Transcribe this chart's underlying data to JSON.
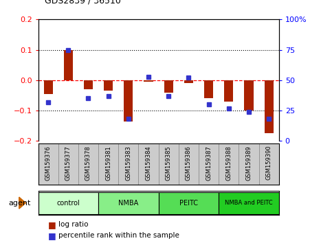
{
  "title": "GDS2839 / 36510",
  "samples": [
    "GSM159376",
    "GSM159377",
    "GSM159378",
    "GSM159381",
    "GSM159383",
    "GSM159384",
    "GSM159385",
    "GSM159386",
    "GSM159387",
    "GSM159388",
    "GSM159389",
    "GSM159390"
  ],
  "log_ratio": [
    -0.045,
    0.1,
    -0.03,
    -0.035,
    -0.135,
    -0.005,
    -0.04,
    -0.01,
    -0.06,
    -0.07,
    -0.1,
    -0.175
  ],
  "percentile_rank": [
    32,
    75,
    35,
    37,
    18,
    53,
    37,
    52,
    30,
    27,
    24,
    18
  ],
  "groups": [
    {
      "label": "control",
      "start": 0,
      "end": 3,
      "color": "#ccffcc"
    },
    {
      "label": "NMBA",
      "start": 3,
      "end": 6,
      "color": "#88ee88"
    },
    {
      "label": "PEITC",
      "start": 6,
      "end": 9,
      "color": "#55dd55"
    },
    {
      "label": "NMBA and PEITC",
      "start": 9,
      "end": 12,
      "color": "#22cc22"
    }
  ],
  "ylim_left": [
    -0.2,
    0.2
  ],
  "ylim_right": [
    0,
    100
  ],
  "yticks_left": [
    -0.2,
    -0.1,
    0.0,
    0.1,
    0.2
  ],
  "yticks_right": [
    0,
    25,
    50,
    75,
    100
  ],
  "bar_color": "#aa2200",
  "dot_color": "#3333cc",
  "legend_log": "log ratio",
  "legend_pct": "percentile rank within the sample"
}
